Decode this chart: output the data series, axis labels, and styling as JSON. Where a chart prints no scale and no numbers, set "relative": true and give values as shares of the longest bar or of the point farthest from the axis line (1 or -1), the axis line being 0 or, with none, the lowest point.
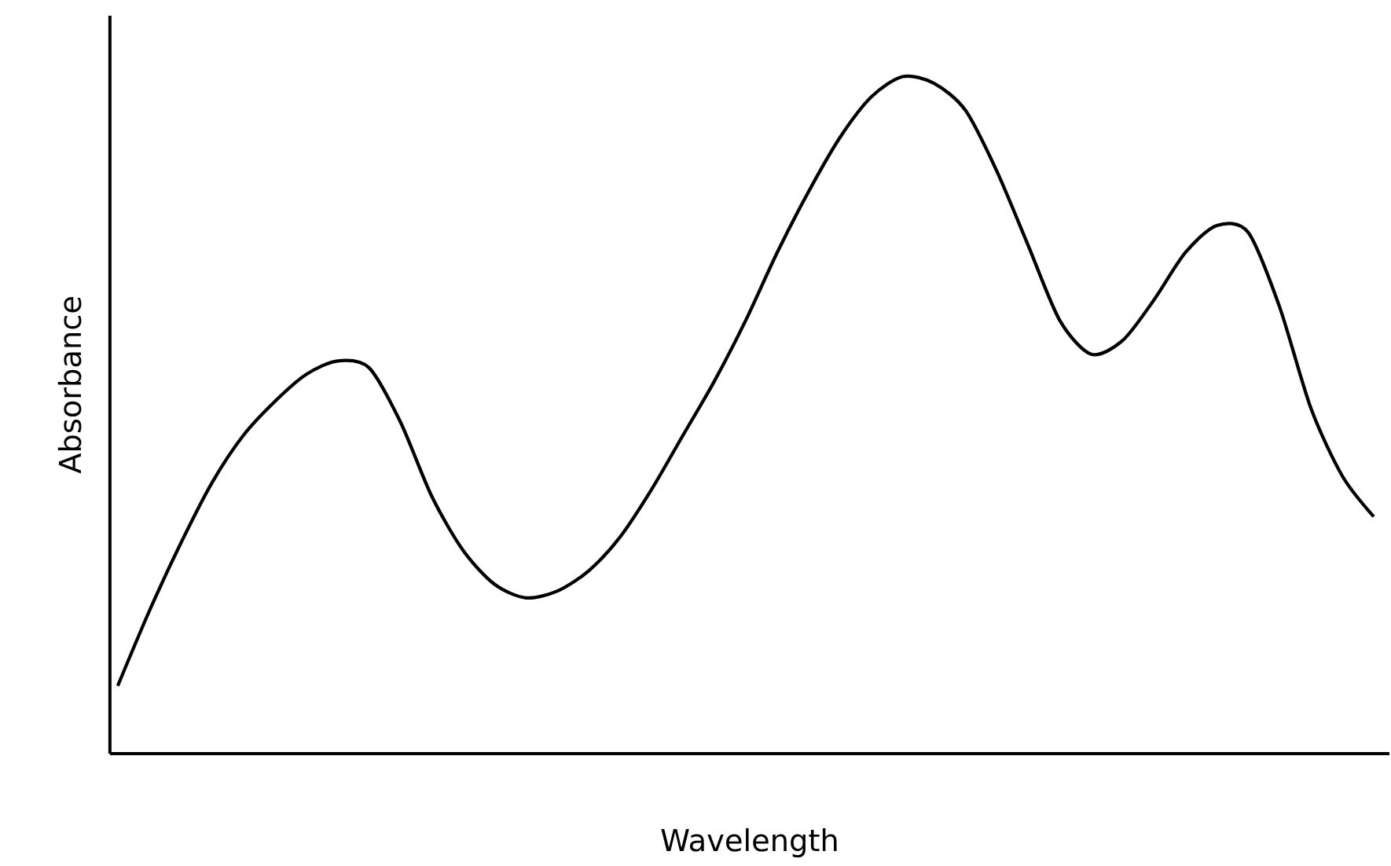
{
  "chart_data": {
    "type": "line",
    "xlabel": "Wavelength",
    "ylabel": "Absorbance",
    "relative": true,
    "marker": "none",
    "line_style": "solid",
    "color": "#000000",
    "categories": [
      null,
      null,
      null,
      null,
      null,
      null,
      null,
      null,
      null,
      null,
      null,
      null,
      null,
      null,
      null,
      null,
      null,
      null,
      null,
      null,
      null,
      null,
      null,
      null,
      null,
      null,
      null,
      null,
      null,
      null,
      null,
      null,
      null,
      null,
      null,
      null,
      null,
      null,
      null,
      null,
      null
    ],
    "values": [
      0.1,
      0.21,
      0.31,
      0.4,
      0.47,
      0.52,
      0.56,
      0.58,
      0.57,
      0.49,
      0.38,
      0.3,
      0.25,
      0.23,
      0.24,
      0.27,
      0.32,
      0.39,
      0.47,
      0.55,
      0.64,
      0.74,
      0.83,
      0.91,
      0.97,
      1.0,
      0.99,
      0.95,
      0.86,
      0.75,
      0.64,
      0.59,
      0.61,
      0.67,
      0.74,
      0.78,
      0.77,
      0.66,
      0.51,
      0.41,
      0.35
    ]
  }
}
